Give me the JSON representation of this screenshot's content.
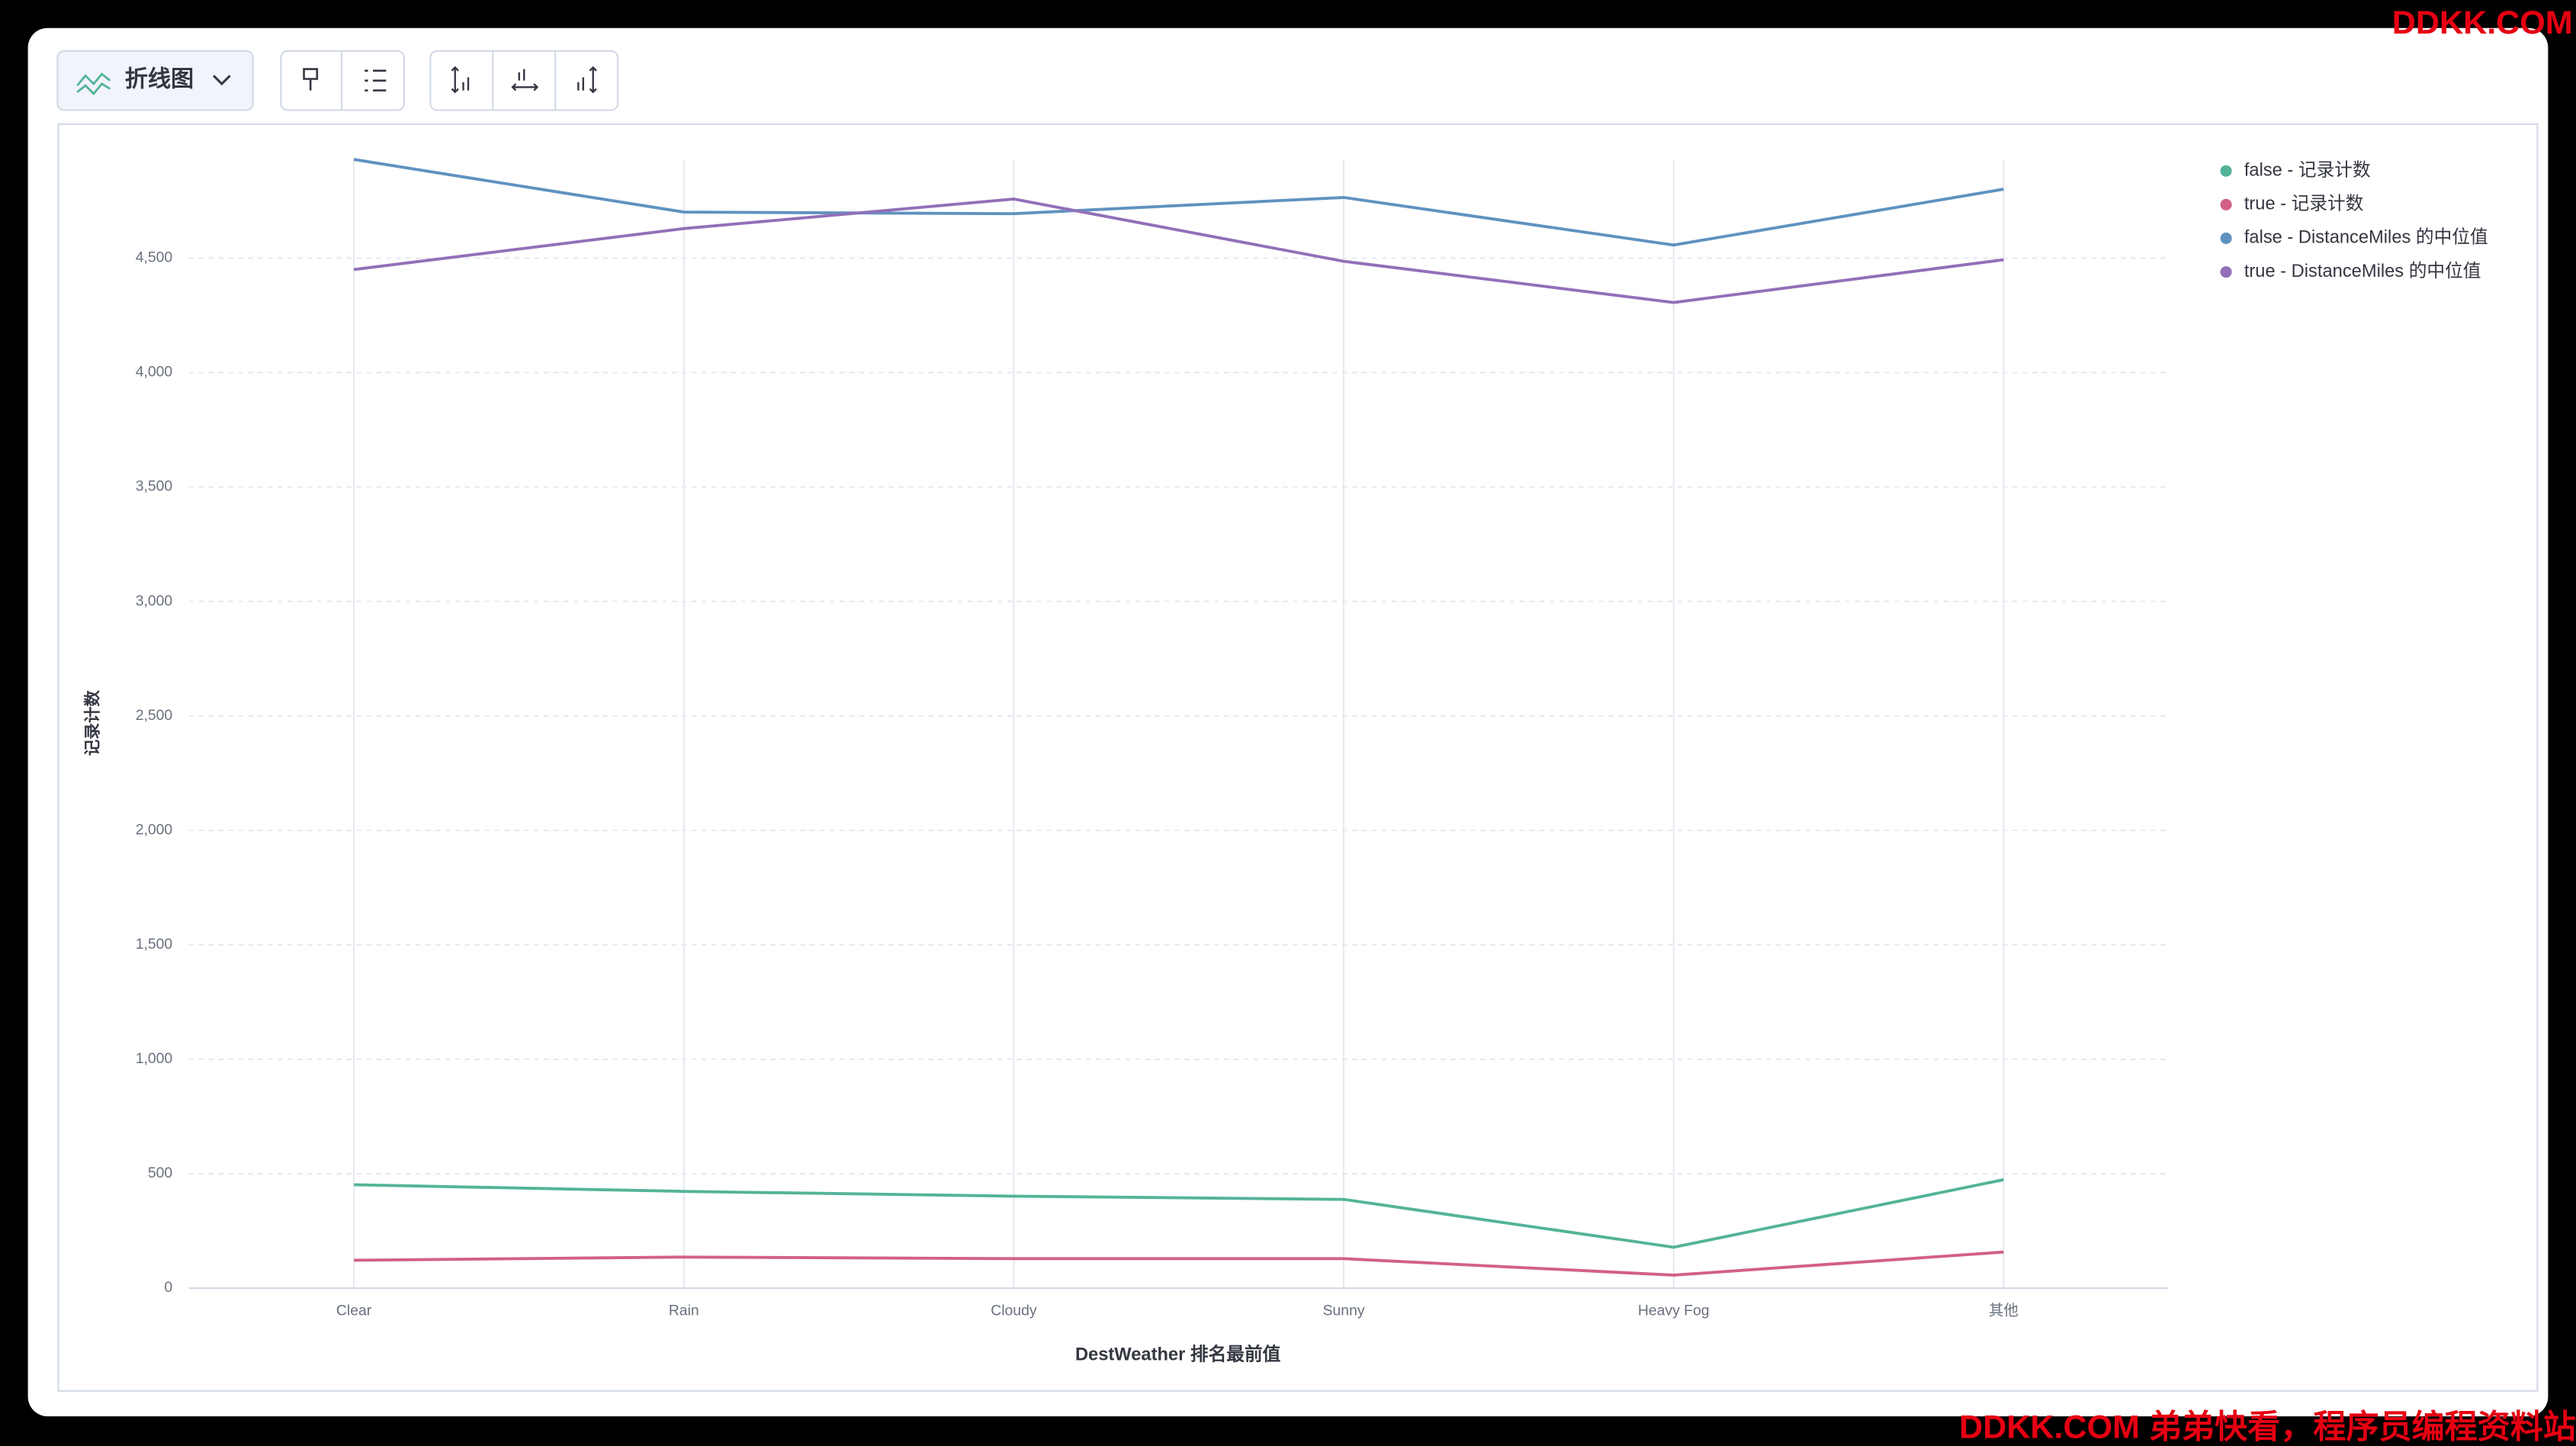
{
  "toolbar": {
    "chart_type": "折线图"
  },
  "watermark": {
    "top": "DDKK.COM",
    "bottom": "DDKK.COM 弟弟快看，程序员编程资料站"
  },
  "chart_data": {
    "type": "line",
    "y_label": "记录计数",
    "x_label": "DestWeather 排名最前值",
    "categories": [
      "Clear",
      "Rain",
      "Cloudy",
      "Sunny",
      "Heavy Fog",
      "其他"
    ],
    "series": [
      {
        "name": "false - 记录计数",
        "color": "#54b399",
        "values": [
          452,
          423,
          402,
          388,
          179,
          474
        ]
      },
      {
        "name": "true - 记录计数",
        "color": "#d36086",
        "values": [
          122,
          136,
          129,
          129,
          57,
          158
        ]
      },
      {
        "name": "false - DistanceMiles 的中位值",
        "color": "#6092c0",
        "values": [
          4931,
          4701,
          4694,
          4765,
          4557,
          4801
        ]
      },
      {
        "name": "true - DistanceMiles 的中位值",
        "color": "#9170b8",
        "values": [
          4450,
          4629,
          4758,
          4486,
          4306,
          4493
        ]
      }
    ],
    "ylim": [
      0,
      4931
    ],
    "yticks": [
      0,
      500,
      {
        "value": 1000,
        "label": "1,000"
      },
      {
        "value": 1500,
        "label": "1,500"
      },
      {
        "value": 2000,
        "label": "2,000"
      },
      {
        "value": 2500,
        "label": "2,500"
      },
      {
        "value": 3000,
        "label": "3,000"
      },
      {
        "value": 3500,
        "label": "3,500"
      },
      {
        "value": 4000,
        "label": "4,000"
      },
      {
        "value": 4500,
        "label": "4,500"
      }
    ],
    "grid": true,
    "legend_position": "right"
  }
}
